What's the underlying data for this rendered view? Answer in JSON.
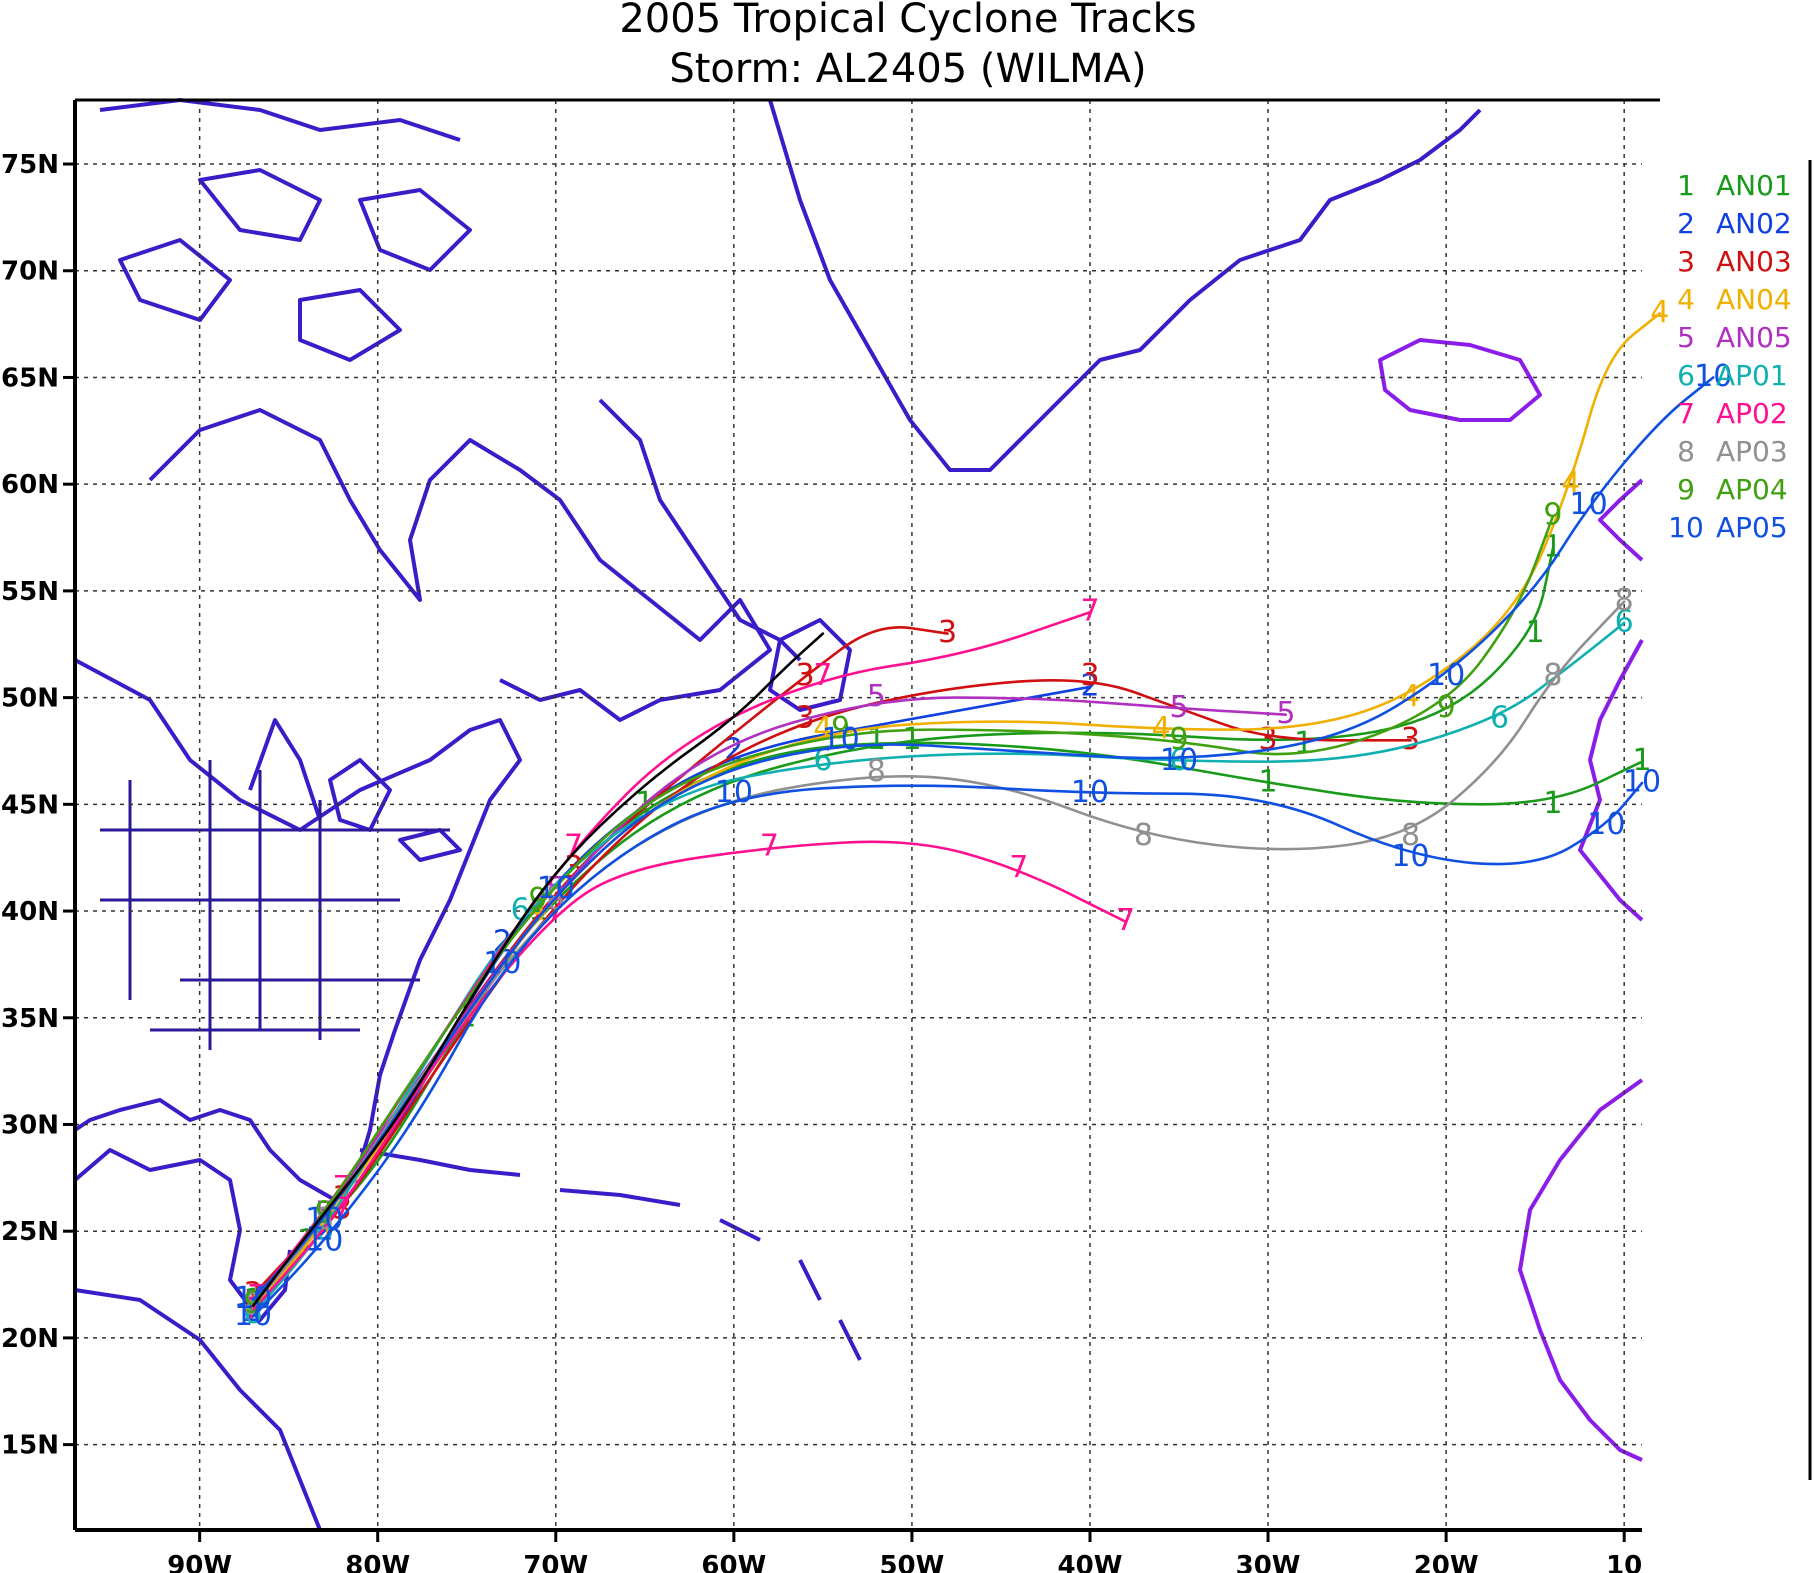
{
  "title": {
    "line1": "2005 Tropical Cyclone Tracks",
    "line2": "Storm: AL2405 (WILMA)"
  },
  "axes": {
    "lon_range": [
      -97,
      -9
    ],
    "lat_range": [
      11,
      78
    ],
    "lon_ticks": [
      {
        "value": -90,
        "label": "90W"
      },
      {
        "value": -80,
        "label": "80W"
      },
      {
        "value": -70,
        "label": "70W"
      },
      {
        "value": -60,
        "label": "60W"
      },
      {
        "value": -50,
        "label": "50W"
      },
      {
        "value": -40,
        "label": "40W"
      },
      {
        "value": -30,
        "label": "30W"
      },
      {
        "value": -20,
        "label": "20W"
      },
      {
        "value": -10,
        "label": "10"
      }
    ],
    "lat_ticks": [
      {
        "value": 75,
        "label": "75N"
      },
      {
        "value": 70,
        "label": "70N"
      },
      {
        "value": 65,
        "label": "65N"
      },
      {
        "value": 60,
        "label": "60N"
      },
      {
        "value": 55,
        "label": "55N"
      },
      {
        "value": 50,
        "label": "50N"
      },
      {
        "value": 45,
        "label": "45N"
      },
      {
        "value": 40,
        "label": "40N"
      },
      {
        "value": 35,
        "label": "35N"
      },
      {
        "value": 30,
        "label": "30N"
      },
      {
        "value": 25,
        "label": "25N"
      },
      {
        "value": 20,
        "label": "20N"
      },
      {
        "value": 15,
        "label": "15N"
      }
    ],
    "grid": true
  },
  "legend": [
    {
      "num": "1",
      "name": "AN01",
      "color": "#1a9a1a"
    },
    {
      "num": "2",
      "name": "AN02",
      "color": "#1040e0"
    },
    {
      "num": "3",
      "name": "AN03",
      "color": "#d01010"
    },
    {
      "num": "4",
      "name": "AN04",
      "color": "#f0b000"
    },
    {
      "num": "5",
      "name": "AN05",
      "color": "#b030c0"
    },
    {
      "num": "6",
      "name": "AP01",
      "color": "#10b0b0"
    },
    {
      "num": "7",
      "name": "AP02",
      "color": "#ff1090"
    },
    {
      "num": "8",
      "name": "AP03",
      "color": "#909090"
    },
    {
      "num": "9",
      "name": "AP04",
      "color": "#40a010"
    },
    {
      "num": "10",
      "name": "AP05",
      "color": "#1050e0"
    }
  ],
  "map_colors": {
    "coast_west": "#3a1cc8",
    "coast_east": "#8a1ee8",
    "best_track": "#000000"
  },
  "chart_data": {
    "type": "map-tracks",
    "title": "2005 Tropical Cyclone Tracks",
    "subtitle": "Storm: AL2405 (WILMA)",
    "xlim": [
      -97,
      -9
    ],
    "ylim": [
      11,
      78
    ],
    "series": [
      {
        "name": "AN01",
        "mark": "1",
        "color": "#1a9a1a",
        "points": [
          [
            -87,
            21.5
          ],
          [
            -84,
            24.5
          ],
          [
            -80,
            28
          ],
          [
            -75,
            35
          ],
          [
            -70,
            41
          ],
          [
            -65,
            45
          ],
          [
            -58,
            47.5
          ],
          [
            -50,
            48
          ],
          [
            -40,
            47.5
          ],
          [
            -30,
            46
          ],
          [
            -22,
            45
          ],
          [
            -14,
            45
          ],
          [
            -9,
            47
          ]
        ]
      },
      {
        "name": "AN01",
        "mark": "1",
        "color": "#1a9a1a",
        "points": [
          [
            -87,
            21.7
          ],
          [
            -83,
            25.5
          ],
          [
            -77,
            33
          ],
          [
            -71,
            40
          ],
          [
            -63,
            45.5
          ],
          [
            -52,
            48
          ],
          [
            -40,
            48.5
          ],
          [
            -28,
            47.8
          ],
          [
            -20,
            49
          ],
          [
            -15,
            53
          ],
          [
            -14,
            57
          ]
        ]
      },
      {
        "name": "AN02",
        "mark": "2",
        "color": "#1040e0",
        "points": [
          [
            -87,
            21.2
          ],
          [
            -83,
            25
          ],
          [
            -78,
            31
          ],
          [
            -73,
            38.5
          ],
          [
            -67,
            44
          ],
          [
            -60,
            47.5
          ],
          [
            -50,
            49
          ],
          [
            -40,
            50.5
          ]
        ]
      },
      {
        "name": "AN03",
        "mark": "3",
        "color": "#d01010",
        "points": [
          [
            -86.5,
            21.8
          ],
          [
            -82,
            26
          ],
          [
            -76,
            33.5
          ],
          [
            -70,
            40.5
          ],
          [
            -63,
            46
          ],
          [
            -56,
            49
          ],
          [
            -48,
            50.5
          ],
          [
            -40,
            51
          ],
          [
            -35,
            49.5
          ],
          [
            -30,
            48
          ],
          [
            -22,
            48
          ]
        ]
      },
      {
        "name": "AN03",
        "mark": "3",
        "color": "#d01010",
        "points": [
          [
            -87,
            22
          ],
          [
            -82,
            26.5
          ],
          [
            -75,
            35.5
          ],
          [
            -69,
            42
          ],
          [
            -62,
            47
          ],
          [
            -56,
            51
          ],
          [
            -52,
            53.5
          ],
          [
            -48,
            53
          ]
        ]
      },
      {
        "name": "AN04",
        "mark": "4",
        "color": "#f0b000",
        "points": [
          [
            -87,
            21.4
          ],
          [
            -83,
            25.3
          ],
          [
            -77,
            32.5
          ],
          [
            -71,
            40
          ],
          [
            -64,
            45.5
          ],
          [
            -55,
            48.5
          ],
          [
            -45,
            49
          ],
          [
            -36,
            48.5
          ],
          [
            -28,
            48.5
          ],
          [
            -22,
            50
          ],
          [
            -16,
            54
          ],
          [
            -13,
            60
          ],
          [
            -11,
            66
          ],
          [
            -8,
            68
          ]
        ]
      },
      {
        "name": "AN05",
        "mark": "5",
        "color": "#b030c0",
        "points": [
          [
            -87,
            21.6
          ],
          [
            -83,
            25.8
          ],
          [
            -77,
            33
          ],
          [
            -70,
            41
          ],
          [
            -62,
            47.5
          ],
          [
            -52,
            50
          ],
          [
            -43,
            50
          ],
          [
            -35,
            49.5
          ],
          [
            -29,
            49.2
          ]
        ]
      },
      {
        "name": "AP01",
        "mark": "6",
        "color": "#10b0b0",
        "points": [
          [
            -87,
            21.1
          ],
          [
            -83,
            25
          ],
          [
            -78,
            32
          ],
          [
            -72,
            40
          ],
          [
            -64,
            45.5
          ],
          [
            -55,
            47
          ],
          [
            -45,
            47.5
          ],
          [
            -35,
            47
          ],
          [
            -25,
            47
          ],
          [
            -17,
            49
          ],
          [
            -13,
            51.5
          ],
          [
            -10,
            53.5
          ]
        ]
      },
      {
        "name": "AP02",
        "mark": "7",
        "color": "#ff1090",
        "points": [
          [
            -87,
            21.3
          ],
          [
            -82,
            26
          ],
          [
            -76,
            34
          ],
          [
            -70,
            40
          ],
          [
            -66,
            42
          ],
          [
            -58,
            43
          ],
          [
            -50,
            43.4
          ],
          [
            -44,
            42
          ],
          [
            -38,
            39.5
          ]
        ]
      },
      {
        "name": "AP02",
        "mark": "7",
        "color": "#ff1090",
        "points": [
          [
            -86.8,
            21.9
          ],
          [
            -82,
            27
          ],
          [
            -75,
            36
          ],
          [
            -69,
            43
          ],
          [
            -63,
            48
          ],
          [
            -55,
            51
          ],
          [
            -47,
            52
          ],
          [
            -40,
            54
          ]
        ]
      },
      {
        "name": "AP03",
        "mark": "8",
        "color": "#909090",
        "points": [
          [
            -87,
            21.5
          ],
          [
            -83,
            25.5
          ],
          [
            -77,
            33
          ],
          [
            -70,
            40.5
          ],
          [
            -62,
            45
          ],
          [
            -52,
            46.5
          ],
          [
            -45,
            46
          ],
          [
            -37,
            43.5
          ],
          [
            -29,
            42.7
          ],
          [
            -22,
            43.5
          ],
          [
            -17,
            47
          ],
          [
            -14,
            51
          ],
          [
            -10,
            54.5
          ]
        ]
      },
      {
        "name": "AP04",
        "mark": "9",
        "color": "#40a010",
        "points": [
          [
            -87,
            21.6
          ],
          [
            -83,
            25.8
          ],
          [
            -77,
            33.5
          ],
          [
            -71,
            40.5
          ],
          [
            -64,
            46
          ],
          [
            -54,
            48.5
          ],
          [
            -44,
            48.5
          ],
          [
            -35,
            48
          ],
          [
            -28,
            47
          ],
          [
            -20,
            49.5
          ],
          [
            -16,
            54
          ],
          [
            -14,
            58.5
          ]
        ]
      },
      {
        "name": "AP05",
        "mark": "10",
        "color": "#1050e0",
        "points": [
          [
            -87,
            21
          ],
          [
            -83,
            24.5
          ],
          [
            -78,
            30
          ],
          [
            -73,
            37.5
          ],
          [
            -67,
            42.5
          ],
          [
            -60,
            45.5
          ],
          [
            -50,
            46
          ],
          [
            -40,
            45.5
          ],
          [
            -30,
            45.5
          ],
          [
            -22,
            42.5
          ],
          [
            -15,
            42
          ],
          [
            -11,
            44
          ],
          [
            -9,
            46
          ]
        ]
      },
      {
        "name": "AP05",
        "mark": "10",
        "color": "#1050e0",
        "points": [
          [
            -87,
            21.8
          ],
          [
            -83,
            25.5
          ],
          [
            -76,
            34
          ],
          [
            -70,
            41
          ],
          [
            -63,
            46
          ],
          [
            -54,
            48
          ],
          [
            -44,
            47.5
          ],
          [
            -35,
            47
          ],
          [
            -26,
            48
          ],
          [
            -20,
            51
          ],
          [
            -15,
            55
          ],
          [
            -12,
            59
          ],
          [
            -8,
            63
          ],
          [
            -5,
            65
          ]
        ]
      }
    ]
  }
}
